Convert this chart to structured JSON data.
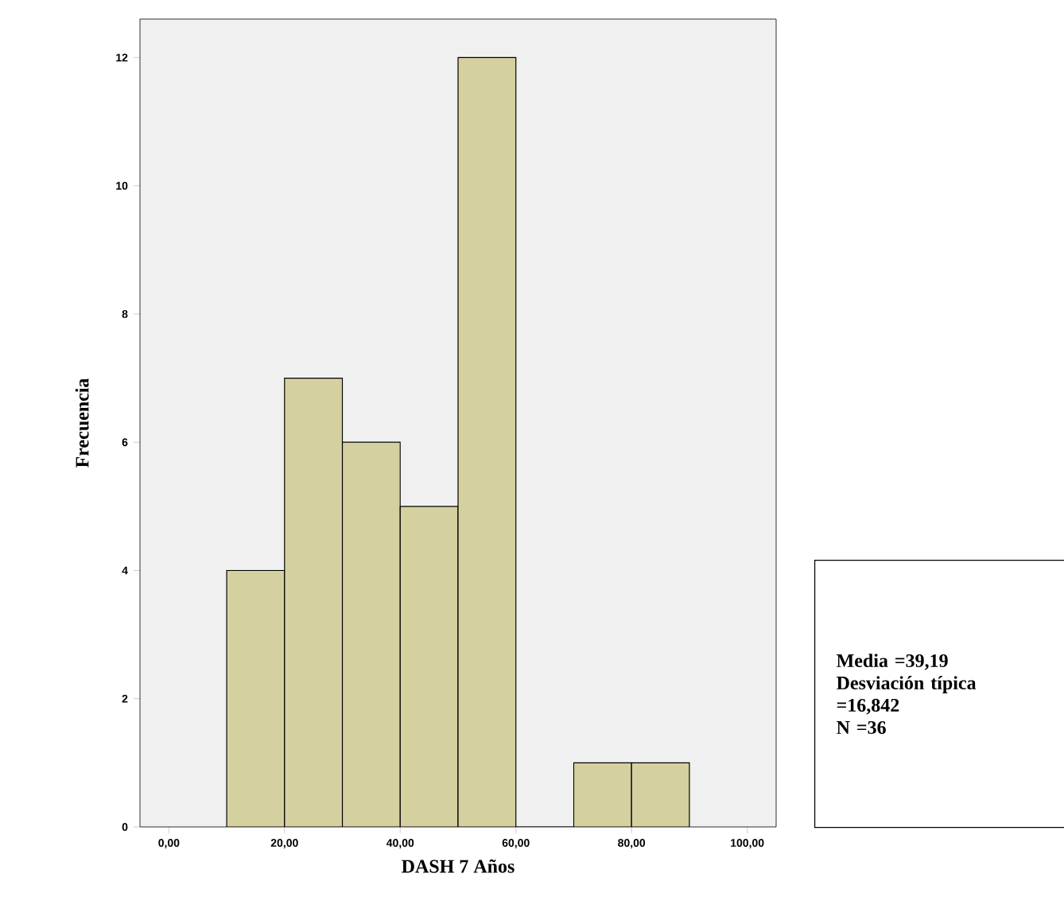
{
  "chart_data": {
    "type": "histogram",
    "xlabel": "DASH 7 Años",
    "ylabel": "Frecuencia",
    "bins": [
      10,
      20,
      30,
      40,
      50,
      60,
      70,
      80,
      90
    ],
    "values": [
      4,
      7,
      6,
      5,
      12,
      0,
      1,
      1
    ],
    "color": "#d5d0a0",
    "xlim": [
      -5,
      105
    ],
    "ylim": [
      0,
      12.6
    ],
    "xticks": [
      {
        "value": 0,
        "label": "0,00"
      },
      {
        "value": 20,
        "label": "20,00"
      },
      {
        "value": 40,
        "label": "40,00"
      },
      {
        "value": 60,
        "label": "60,00"
      },
      {
        "value": 80,
        "label": "80,00"
      },
      {
        "value": 100,
        "label": "100,00"
      }
    ],
    "yticks": [
      0,
      2,
      4,
      6,
      8,
      10,
      12
    ],
    "annotations": [
      "Media =39,19",
      "Desviación típica =16,842",
      "N =36"
    ]
  }
}
